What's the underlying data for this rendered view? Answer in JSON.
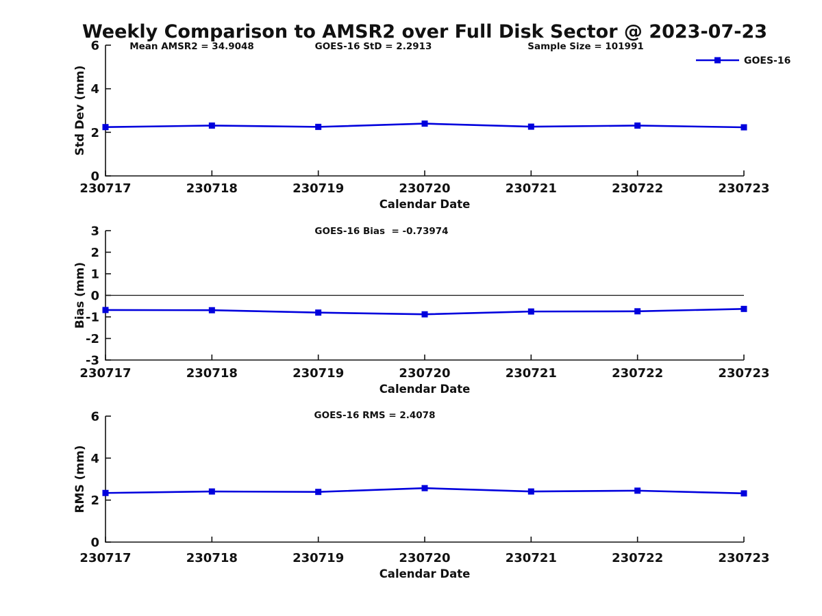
{
  "title": "Weekly Comparison to AMSR2 over Full Disk Sector @ 2023-07-23",
  "annotations": {
    "mean_amsr2": "Mean AMSR2 = 34.9048",
    "goes16_std": "GOES-16 StD = 2.2913",
    "sample_size": "Sample Size = 101991",
    "goes16_bias": "GOES-16 Bias  = -0.73974",
    "goes16_rms": "GOES-16 RMS = 2.4078"
  },
  "legend": {
    "label": "GOES-16",
    "color": "#0000DD"
  },
  "colors": {
    "line": "#0000DD",
    "marker": "#0000CC",
    "axis": "#111111"
  },
  "chart_data": [
    {
      "type": "line",
      "categories": [
        "230717",
        "230718",
        "230719",
        "230720",
        "230721",
        "230722",
        "230723"
      ],
      "series": [
        {
          "name": "GOES-16",
          "color": "#0000DD",
          "marker": "square",
          "values": [
            2.24,
            2.31,
            2.25,
            2.4,
            2.26,
            2.31,
            2.23
          ]
        }
      ],
      "title": "",
      "xlabel": "Calendar Date",
      "ylabel": "Std Dev (mm)",
      "ylim": [
        0,
        6
      ],
      "yticks": [
        0,
        2,
        4,
        6
      ],
      "grid": false,
      "zero_line": false,
      "legend_position": "top-right-outside"
    },
    {
      "type": "line",
      "categories": [
        "230717",
        "230718",
        "230719",
        "230720",
        "230721",
        "230722",
        "230723"
      ],
      "series": [
        {
          "name": "GOES-16",
          "color": "#0000DD",
          "marker": "square",
          "values": [
            -0.68,
            -0.69,
            -0.8,
            -0.88,
            -0.75,
            -0.74,
            -0.63
          ]
        }
      ],
      "title": "",
      "xlabel": "Calendar Date",
      "ylabel": "Bias (mm)",
      "ylim": [
        -3,
        3
      ],
      "yticks": [
        -3,
        -2,
        -1,
        0,
        1,
        2,
        3
      ],
      "grid": false,
      "zero_line": true,
      "legend_position": "none"
    },
    {
      "type": "line",
      "categories": [
        "230717",
        "230718",
        "230719",
        "230720",
        "230721",
        "230722",
        "230723"
      ],
      "series": [
        {
          "name": "GOES-16",
          "color": "#0000DD",
          "marker": "square",
          "values": [
            2.34,
            2.41,
            2.39,
            2.57,
            2.41,
            2.45,
            2.32
          ]
        }
      ],
      "title": "",
      "xlabel": "Calendar Date",
      "ylabel": "RMS (mm)",
      "ylim": [
        0,
        6
      ],
      "yticks": [
        0,
        2,
        4,
        6
      ],
      "grid": false,
      "zero_line": false,
      "legend_position": "none"
    }
  ]
}
